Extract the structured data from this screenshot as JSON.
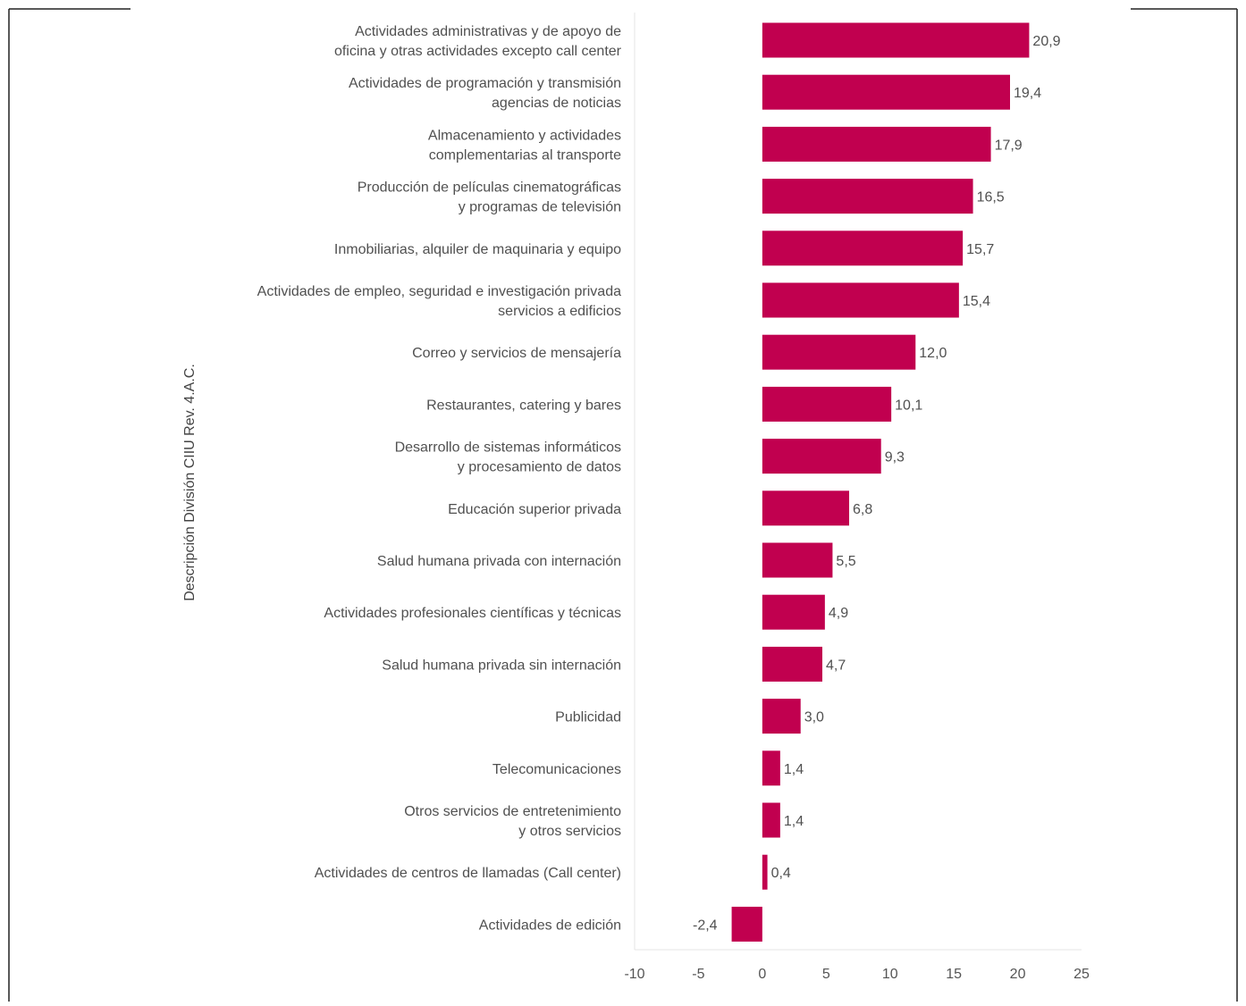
{
  "chart_data": {
    "type": "bar",
    "orientation": "horizontal",
    "ylabel": "Descripción División CIIU Rev. 4.A.C.",
    "xlabel": "",
    "title": "",
    "xlim": [
      -10,
      25
    ],
    "xticks": [
      "-10",
      "-5",
      "0",
      "5",
      "10",
      "15",
      "20",
      "25"
    ],
    "grid": false,
    "bar_color": "#c1004f",
    "categories": [
      [
        "Actividades administrativas y de apoyo de",
        "oficina y otras actividades excepto call center"
      ],
      [
        "Actividades de programación y transmisión",
        "agencias de noticias"
      ],
      [
        "Almacenamiento y actividades",
        "complementarias al transporte"
      ],
      [
        "Producción de películas cinematográficas",
        "y programas de televisión"
      ],
      [
        "Inmobiliarias, alquiler de maquinaria y equipo"
      ],
      [
        "Actividades de empleo, seguridad e investigación privada",
        "servicios a edificios"
      ],
      [
        "Correo y servicios de mensajería"
      ],
      [
        "Restaurantes, catering y bares"
      ],
      [
        "Desarrollo de sistemas informáticos",
        "y procesamiento de datos"
      ],
      [
        "Educación superior privada"
      ],
      [
        "Salud humana privada con internación"
      ],
      [
        "Actividades profesionales científicas y técnicas"
      ],
      [
        "Salud humana privada sin internación"
      ],
      [
        "Publicidad"
      ],
      [
        "Telecomunicaciones"
      ],
      [
        "Otros servicios de entretenimiento",
        "y otros servicios"
      ],
      [
        "Actividades de centros de llamadas (Call center)"
      ],
      [
        "Actividades de edición"
      ]
    ],
    "values": [
      20.9,
      19.4,
      17.9,
      16.5,
      15.7,
      15.4,
      12.0,
      10.1,
      9.3,
      6.8,
      5.5,
      4.9,
      4.7,
      3.0,
      1.4,
      1.4,
      0.4,
      -2.4
    ],
    "value_labels": [
      "20,9",
      "19,4",
      "17,9",
      "16,5",
      "15,7",
      "15,4",
      "12,0",
      "10,1",
      "9,3",
      "6,8",
      "5,5",
      "4,9",
      "4,7",
      "3,0",
      "1,4",
      "1,4",
      "0,4",
      "-2,4"
    ]
  }
}
